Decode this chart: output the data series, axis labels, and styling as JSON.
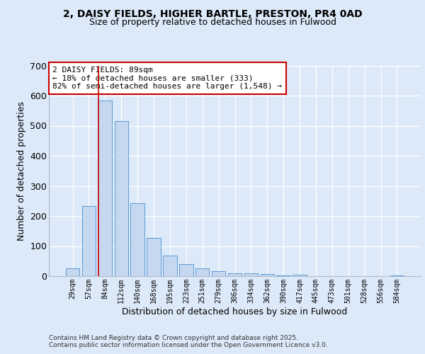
{
  "title1": "2, DAISY FIELDS, HIGHER BARTLE, PRESTON, PR4 0AD",
  "title2": "Size of property relative to detached houses in Fulwood",
  "xlabel": "Distribution of detached houses by size in Fulwood",
  "ylabel": "Number of detached properties",
  "bar_labels": [
    "29sqm",
    "57sqm",
    "84sqm",
    "112sqm",
    "140sqm",
    "168sqm",
    "195sqm",
    "223sqm",
    "251sqm",
    "279sqm",
    "306sqm",
    "334sqm",
    "362sqm",
    "390sqm",
    "417sqm",
    "445sqm",
    "473sqm",
    "501sqm",
    "528sqm",
    "556sqm",
    "584sqm"
  ],
  "bar_values": [
    25,
    233,
    583,
    515,
    242,
    126,
    68,
    40,
    26,
    16,
    10,
    10,
    8,
    3,
    4,
    1,
    0,
    0,
    0,
    0,
    3
  ],
  "bar_color": "#c5d8f0",
  "bar_edge_color": "#5b9bd5",
  "vline_bar_index": 2,
  "vline_color": "#cc0000",
  "annotation_text": "2 DAISY FIELDS: 89sqm\n← 18% of detached houses are smaller (333)\n82% of semi-detached houses are larger (1,548) →",
  "annotation_box_color": "#ffffff",
  "annotation_box_edge": "#cc0000",
  "ylim": [
    0,
    700
  ],
  "yticks": [
    0,
    100,
    200,
    300,
    400,
    500,
    600,
    700
  ],
  "background_color": "#dce9f8",
  "plot_bg_color": "#dce9f8",
  "footer1": "Contains HM Land Registry data © Crown copyright and database right 2025.",
  "footer2": "Contains public sector information licensed under the Open Government Licence v3.0."
}
